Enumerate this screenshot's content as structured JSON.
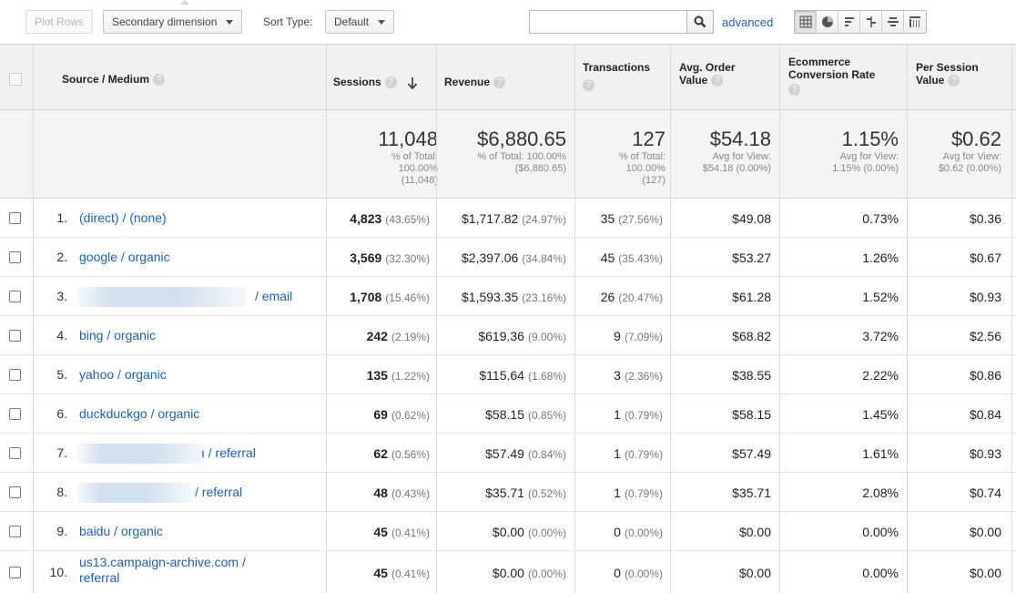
{
  "toolbar": {
    "plot_rows": "Plot Rows",
    "secondary_dimension": "Secondary dimension",
    "sort_type_label": "Sort Type:",
    "sort_type_value": "Default",
    "search_value": "",
    "advanced": "advanced"
  },
  "headers": {
    "source_medium": "Source / Medium",
    "sessions": "Sessions",
    "revenue": "Revenue",
    "transactions": "Transactions",
    "avg_order_value_1": "Avg. Order",
    "avg_order_value_2": "Value",
    "ecommerce_1": "Ecommerce",
    "ecommerce_2": "Conversion Rate",
    "per_session_1": "Per Session",
    "per_session_2": "Value"
  },
  "totals": {
    "sessions": "11,048",
    "sessions_sub1": "% of Total:",
    "sessions_sub2": "100.00%",
    "sessions_sub3": "(11,048)",
    "revenue": "$6,880.65",
    "revenue_sub1": "% of Total: 100.00%",
    "revenue_sub2": "($6,880.65)",
    "transactions": "127",
    "transactions_sub1": "% of Total:",
    "transactions_sub2": "100.00%",
    "transactions_sub3": "(127)",
    "aov": "$54.18",
    "aov_sub1": "Avg for View:",
    "aov_sub2": "$54.18 (0.00%)",
    "ecr": "1.15%",
    "ecr_sub1": "Avg for View:",
    "ecr_sub2": "1.15% (0.00%)",
    "psv": "$0.62",
    "psv_sub1": "Avg for View:",
    "psv_sub2": "$0.62 (0.00%)"
  },
  "rows": [
    {
      "idx": "1.",
      "source": "(direct) / (none)",
      "sessions": "4,823",
      "sessions_pct": "(43.65%)",
      "revenue": "$1,717.82",
      "revenue_pct": "(24.97%)",
      "tx": "35",
      "tx_pct": "(27.56%)",
      "aov": "$49.08",
      "ecr": "0.73%",
      "psv": "$0.36"
    },
    {
      "idx": "2.",
      "source": "google / organic",
      "sessions": "3,569",
      "sessions_pct": "(32.30%)",
      "revenue": "$2,397.06",
      "revenue_pct": "(34.84%)",
      "tx": "45",
      "tx_pct": "(35.43%)",
      "aov": "$53.27",
      "ecr": "1.26%",
      "psv": "$0.67"
    },
    {
      "idx": "3.",
      "source": "/ email",
      "sessions": "1,708",
      "sessions_pct": "(15.46%)",
      "revenue": "$1,593.35",
      "revenue_pct": "(23.16%)",
      "tx": "26",
      "tx_pct": "(20.47%)",
      "aov": "$61.28",
      "ecr": "1.52%",
      "psv": "$0.93"
    },
    {
      "idx": "4.",
      "source": "bing / organic",
      "sessions": "242",
      "sessions_pct": "(2.19%)",
      "revenue": "$619.36",
      "revenue_pct": "(9.00%)",
      "tx": "9",
      "tx_pct": "(7.09%)",
      "aov": "$68.82",
      "ecr": "3.72%",
      "psv": "$2.56"
    },
    {
      "idx": "5.",
      "source": "yahoo / organic",
      "sessions": "135",
      "sessions_pct": "(1.22%)",
      "revenue": "$115.64",
      "revenue_pct": "(1.68%)",
      "tx": "3",
      "tx_pct": "(2.36%)",
      "aov": "$38.55",
      "ecr": "2.22%",
      "psv": "$0.86"
    },
    {
      "idx": "6.",
      "source": "duckduckgo / organic",
      "sessions": "69",
      "sessions_pct": "(0.62%)",
      "revenue": "$58.15",
      "revenue_pct": "(0.85%)",
      "tx": "1",
      "tx_pct": "(0.79%)",
      "aov": "$58.15",
      "ecr": "1.45%",
      "psv": "$0.84"
    },
    {
      "idx": "7.",
      "source": "ı / referral",
      "sessions": "62",
      "sessions_pct": "(0.56%)",
      "revenue": "$57.49",
      "revenue_pct": "(0.84%)",
      "tx": "1",
      "tx_pct": "(0.79%)",
      "aov": "$57.49",
      "ecr": "1.61%",
      "psv": "$0.93"
    },
    {
      "idx": "8.",
      "source": "/ referral",
      "sessions": "48",
      "sessions_pct": "(0.43%)",
      "revenue": "$35.71",
      "revenue_pct": "(0.52%)",
      "tx": "1",
      "tx_pct": "(0.79%)",
      "aov": "$35.71",
      "ecr": "2.08%",
      "psv": "$0.74"
    },
    {
      "idx": "9.",
      "source": "baidu / organic",
      "sessions": "45",
      "sessions_pct": "(0.41%)",
      "revenue": "$0.00",
      "revenue_pct": "(0.00%)",
      "tx": "0",
      "tx_pct": "(0.00%)",
      "aov": "$0.00",
      "ecr": "0.00%",
      "psv": "$0.00"
    },
    {
      "idx": "10.",
      "source_line1": "us13.campaign-archive.com /",
      "source_line2": "referral",
      "sessions": "45",
      "sessions_pct": "(0.41%)",
      "revenue": "$0.00",
      "revenue_pct": "(0.00%)",
      "tx": "0",
      "tx_pct": "(0.00%)",
      "aov": "$0.00",
      "ecr": "0.00%",
      "psv": "$0.00"
    }
  ],
  "colors": {
    "link": "#1a62b6",
    "header_bg": "#f1f1f1"
  },
  "icons": {
    "search": "search-icon",
    "sort": "sort-arrow-down-icon"
  }
}
